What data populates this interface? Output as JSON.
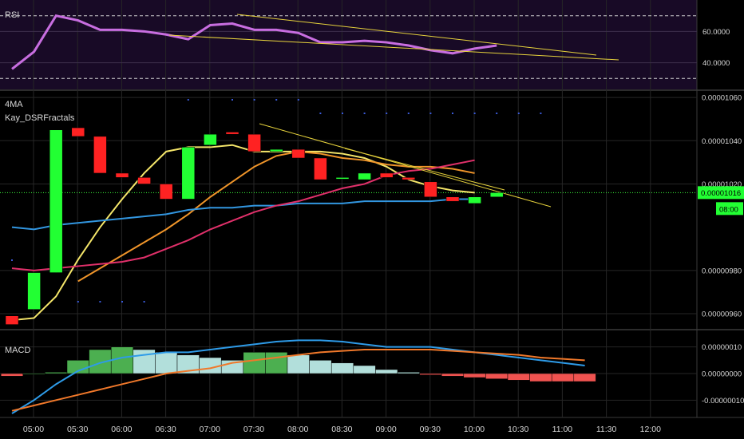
{
  "chart_data": {
    "type": "candlestick",
    "x_ticks": [
      "05:00",
      "05:30",
      "06:00",
      "06:30",
      "07:00",
      "07:30",
      "08:00",
      "08:30",
      "09:00",
      "09:30",
      "10:00",
      "10:30",
      "11:00",
      "11:30",
      "12:00"
    ],
    "price_pane": {
      "labels": [
        "4MA",
        "Kay_DSRFractals"
      ],
      "y_ticks": [
        "0.00001060",
        "0.00001040",
        "0.00001020",
        "0.00000980",
        "0.00000960"
      ],
      "y_tick_values": [
        1060,
        1040,
        1020,
        980,
        960
      ],
      "ylim": [
        953,
        1063
      ],
      "last_price_label": "0.00001016",
      "countdown_label": "08:00",
      "last_price": 1016,
      "candles": [
        {
          "o": 959,
          "c": 955,
          "h": 959,
          "l": 955
        },
        {
          "o": 962,
          "c": 979,
          "h": 979,
          "l": 962
        },
        {
          "o": 979,
          "c": 1045,
          "h": 1045,
          "l": 979
        },
        {
          "o": 1046,
          "c": 1042,
          "h": 1046,
          "l": 1042
        },
        {
          "o": 1042,
          "c": 1025,
          "h": 1042,
          "l": 1025
        },
        {
          "o": 1025,
          "c": 1023,
          "h": 1025,
          "l": 1023
        },
        {
          "o": 1023,
          "c": 1020,
          "h": 1023,
          "l": 1020
        },
        {
          "o": 1020,
          "c": 1013,
          "h": 1020,
          "l": 1013
        },
        {
          "o": 1013,
          "c": 1037,
          "h": 1037,
          "l": 1013
        },
        {
          "o": 1038,
          "c": 1043,
          "h": 1043,
          "l": 1038
        },
        {
          "o": 1044,
          "c": 1043,
          "h": 1044,
          "l": 1043
        },
        {
          "o": 1043,
          "c": 1035,
          "h": 1043,
          "l": 1035
        },
        {
          "o": 1035,
          "c": 1036,
          "h": 1036,
          "l": 1035
        },
        {
          "o": 1036,
          "c": 1032,
          "h": 1036,
          "l": 1032
        },
        {
          "o": 1032,
          "c": 1022,
          "h": 1032,
          "l": 1022
        },
        {
          "o": 1023,
          "c": 1023,
          "h": 1023,
          "l": 1023
        },
        {
          "o": 1022,
          "c": 1025,
          "h": 1025,
          "l": 1022
        },
        {
          "o": 1025,
          "c": 1023,
          "h": 1025,
          "l": 1023
        },
        {
          "o": 1023,
          "c": 1022,
          "h": 1023,
          "l": 1022
        },
        {
          "o": 1021,
          "c": 1014,
          "h": 1021,
          "l": 1014
        },
        {
          "o": 1014,
          "c": 1012,
          "h": 1014,
          "l": 1012
        },
        {
          "o": 1011,
          "c": 1014,
          "h": 1014,
          "l": 1011
        },
        {
          "o": 1014,
          "c": 1016,
          "h": 1016,
          "l": 1014
        }
      ],
      "ma_series": [
        {
          "color": "#f5e66a",
          "values": [
            957,
            958,
            968,
            985,
            1000,
            1013,
            1025,
            1035,
            1037,
            1037,
            1038,
            1035,
            1035,
            1035,
            1035,
            1034,
            1032,
            1028,
            1022,
            1019,
            1017,
            1016
          ]
        },
        {
          "color": "#f0952a",
          "values": [
            null,
            null,
            null,
            975,
            981,
            987,
            993,
            999,
            1006,
            1014,
            1021,
            1028,
            1033,
            1035,
            1034,
            1032,
            1031,
            1029,
            1028,
            1028,
            1027,
            1025
          ]
        },
        {
          "color": "#3296e0",
          "values": [
            1000,
            999,
            1001,
            1002,
            1003,
            1004,
            1005,
            1006,
            1008,
            1009,
            1009,
            1010,
            1010,
            1011,
            1011,
            1011,
            1012,
            1012,
            1012,
            1012,
            1013,
            1013
          ]
        },
        {
          "color": "#e0306a",
          "values": [
            981,
            980,
            981,
            982,
            983,
            984,
            986,
            990,
            994,
            999,
            1003,
            1007,
            1010,
            1012,
            1015,
            1018,
            1020,
            1024,
            1026,
            1027,
            1029,
            1031
          ]
        }
      ],
      "fractals_high": [
        8,
        10,
        11,
        12,
        13
      ],
      "fractals_low": [
        3,
        4,
        5,
        6
      ]
    },
    "rsi_pane": {
      "label": "RSI",
      "y_ticks": [
        "60.0000",
        "40.0000"
      ],
      "y_tick_values": [
        60,
        40
      ],
      "ylim": [
        25,
        78
      ],
      "values": [
        36,
        47,
        70,
        67,
        61,
        61,
        60,
        58,
        55,
        64,
        65,
        61,
        61,
        59,
        53,
        53,
        54,
        53,
        51,
        48,
        46,
        49,
        51
      ]
    },
    "macd_pane": {
      "label": "MACD",
      "y_ticks": [
        "0.00000010",
        "0.00000000",
        "-0.00000010"
      ],
      "y_tick_values": [
        10,
        0,
        -10
      ],
      "ylim": [
        -15,
        15
      ],
      "histogram": [
        -1,
        0,
        0.5,
        5,
        9,
        10,
        9,
        8,
        7,
        6,
        5,
        8,
        8,
        7,
        5,
        4,
        3,
        1.5,
        0.5,
        -0.5,
        -1,
        -1.5,
        -2,
        -2.5,
        -3,
        -3,
        -3
      ],
      "macd_line": [
        -15,
        -10,
        -4,
        1,
        4,
        6,
        7,
        8,
        8,
        9,
        10,
        11,
        12,
        12.5,
        12.5,
        12,
        11,
        10,
        10,
        10,
        9,
        8,
        7,
        6,
        5,
        4,
        3
      ],
      "signal_line": [
        -14,
        -12,
        -10,
        -8,
        -6,
        -4,
        -2,
        0,
        1,
        2,
        4,
        5,
        6,
        7,
        8,
        8.5,
        9,
        9,
        9,
        9,
        8.5,
        8,
        7.5,
        7,
        6,
        5.5,
        5
      ]
    }
  }
}
